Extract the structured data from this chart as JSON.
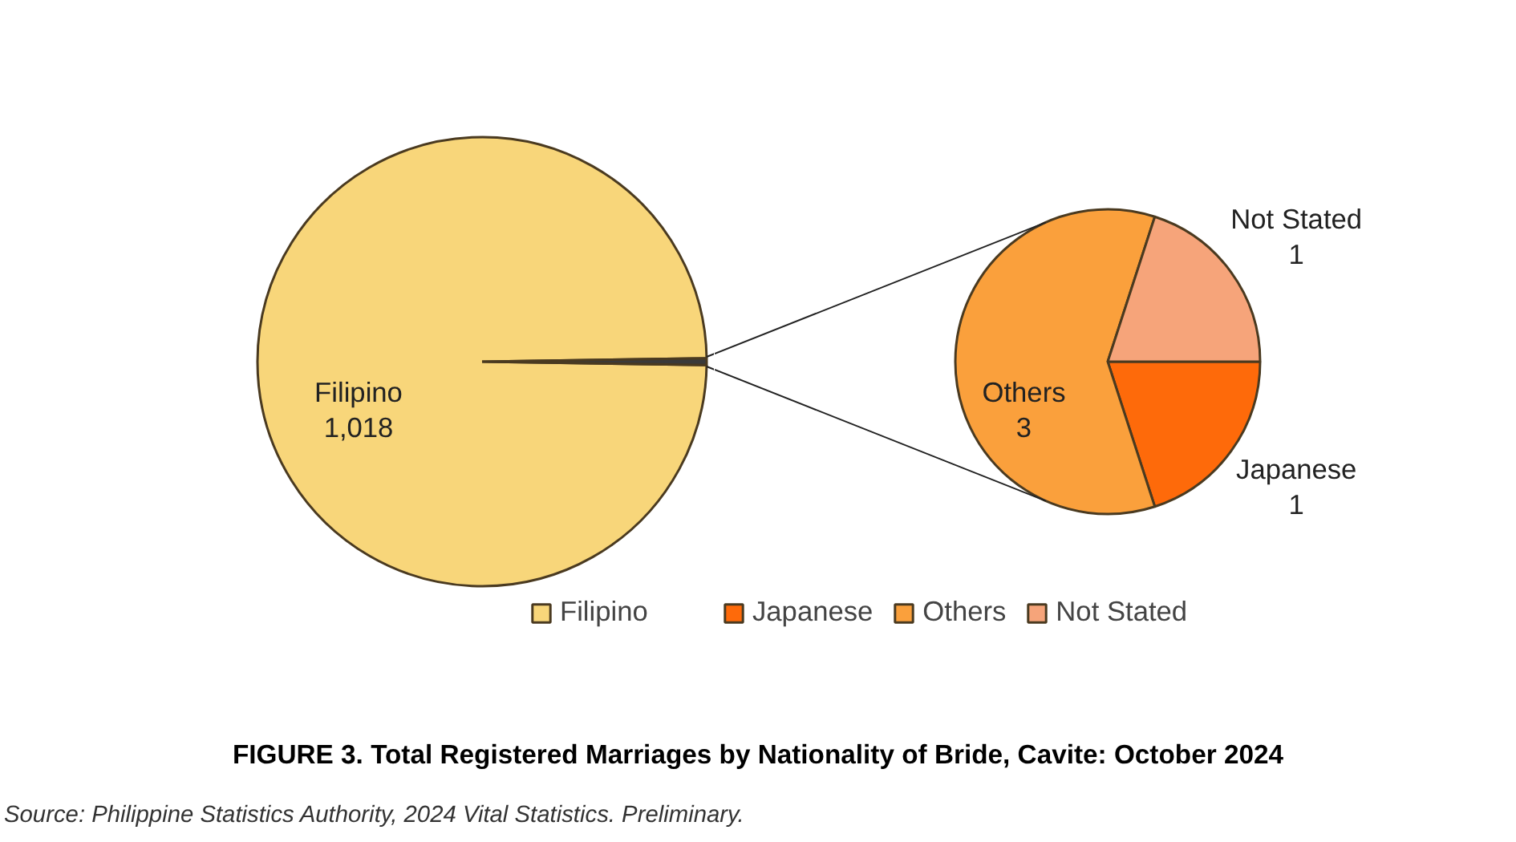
{
  "chart_data": [
    {
      "type": "pie",
      "title": "FIGURE 3. Total Registered Marriages by Nationality of Bride, Cavite: October 2024",
      "categories": [
        "Filipino",
        null
      ],
      "values": [
        1018,
        5
      ],
      "colors": [
        "#f8d67a",
        "#3a3a3a"
      ],
      "value_labels": [
        "1,018",
        null
      ],
      "legend": "bottom",
      "annotations": [
        "Source: Philippine Statistics Authority, 2024 Vital Statistics. Preliminary."
      ]
    },
    {
      "type": "pie",
      "categories": [
        "Japanese",
        "Others",
        "Not Stated"
      ],
      "values": [
        1,
        3,
        1
      ],
      "colors": [
        "#fe6a0a",
        "#faa03c",
        "#f6a47a"
      ],
      "value_labels": [
        "1",
        "3",
        "1"
      ],
      "legend": "bottom"
    }
  ]
}
